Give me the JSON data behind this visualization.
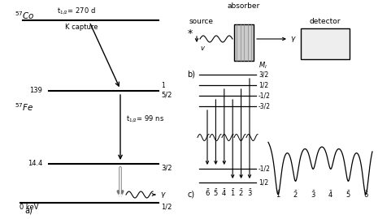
{
  "bg_color": "#ffffff",
  "fig_width": 4.65,
  "fig_height": 2.7,
  "co57_label": "$^{57}$Co",
  "co57_halflife": "t$_{1/2}$= 270 d",
  "co57_kcapture": "K capture",
  "fe57_label": "$^{57}$Fe",
  "label_139": "139",
  "label_144": "14.4",
  "label_0keV": "0 keV",
  "absorber_label": "absorber",
  "source_label": "source",
  "detector_label": "detector",
  "panel_a_label": "a)",
  "panel_b_label": "b)",
  "panel_c_label": "c)"
}
